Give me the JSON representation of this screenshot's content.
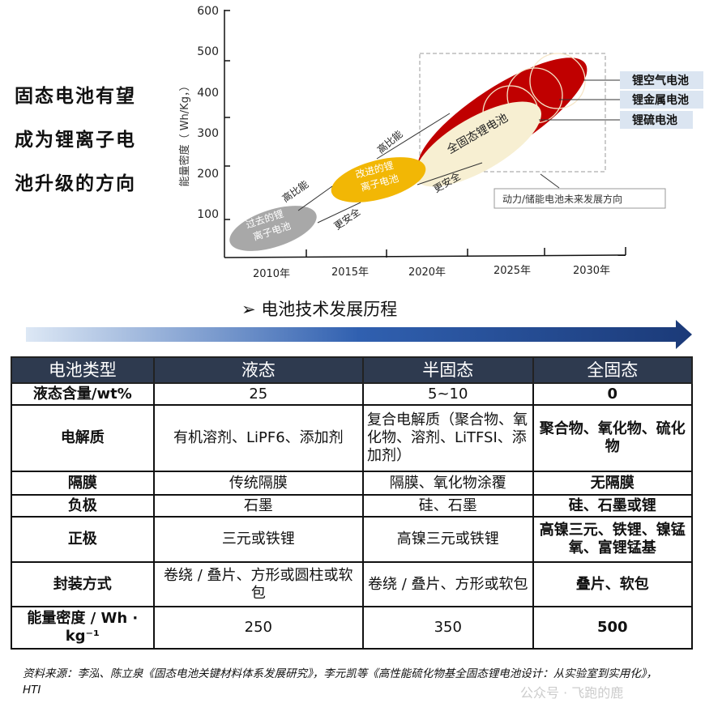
{
  "left_title": [
    "固态电池有望",
    "成为锂离子电",
    "池升级的方向"
  ],
  "diagram": {
    "y_label": "能量密度（ Wh/Kg，）",
    "y_ticks": [
      "600",
      "500",
      "400",
      "300",
      "200",
      "100"
    ],
    "x_ticks": [
      "2010年",
      "2015年",
      "2020年",
      "2025年",
      "2030年"
    ],
    "stages": [
      {
        "label": "过去的锂离子电池",
        "color": "#a8a8a8"
      },
      {
        "label": "改进的锂离子电池",
        "color": "#f2b705"
      },
      {
        "label": "全固态锂电池",
        "color": "#f7efd2"
      }
    ],
    "arrow_labels": {
      "high_energy": "高比能",
      "safer": "更安全"
    },
    "future_types": [
      "锂空气电池",
      "锂金属电池",
      "锂硫电池"
    ],
    "future_caption": "动力/储能电池未来发展方向",
    "colors": {
      "red": "#c00000",
      "label_bg": "#dbe5f1"
    }
  },
  "section_title": "电池技术发展历程",
  "table": {
    "headers": [
      "电池类型",
      "液态",
      "半固态",
      "全固态"
    ],
    "rows": [
      [
        "液态含量/wt%",
        "25",
        "5~10",
        "0"
      ],
      [
        "电解质",
        "有机溶剂、LiPF6、添加剂",
        "复合电解质（聚合物、氧化物、溶剂、LiTFSI、添加剂）",
        "聚合物、氧化物、硫化物"
      ],
      [
        "隔膜",
        "传统隔膜",
        "隔膜、氧化物涂覆",
        "无隔膜"
      ],
      [
        "负极",
        "石墨",
        "硅、石墨",
        "硅、石墨或锂"
      ],
      [
        "正极",
        "三元或铁锂",
        "高镍三元或铁锂",
        "高镍三元、铁锂、镍锰氧、富锂锰基"
      ],
      [
        "封装方式",
        "卷绕 / 叠片、方形或圆柱或软包",
        "卷绕 / 叠片、方形或软包",
        "叠片、软包"
      ],
      [
        "能量密度 / Wh · kg⁻¹",
        "250",
        "350",
        "500"
      ]
    ]
  },
  "source": "资料来源：李泓、陈立泉《固态电池关键材料体系发展研究》，李元凯等《高性能硫化物基全固态锂电池设计：从实验室到实用化》，HTI",
  "watermark": "公众号 · 飞跑的鹿"
}
